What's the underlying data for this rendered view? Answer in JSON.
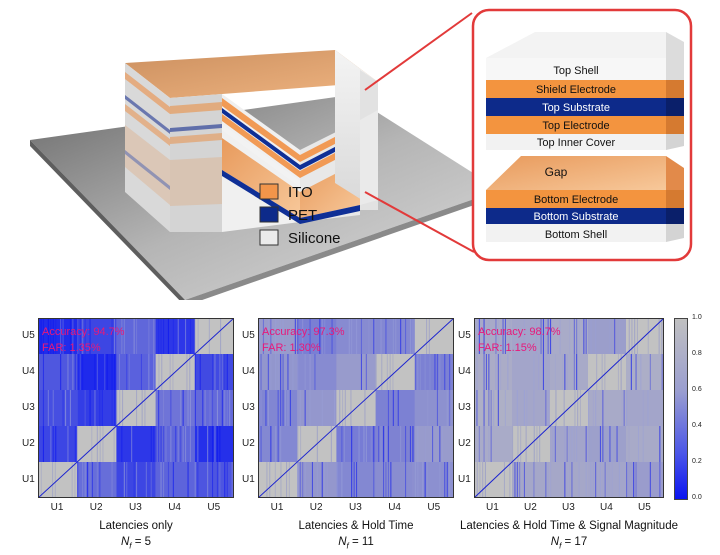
{
  "legend": {
    "items": [
      {
        "label": "ITO",
        "color": "#f2954a"
      },
      {
        "label": "PET",
        "color": "#0d2a8a"
      },
      {
        "label": "Silicone",
        "color": "#ebebeb"
      }
    ]
  },
  "layers": {
    "top_shell": "Top Shell",
    "shield_electrode": "Shield Electrode",
    "top_substrate": "Top Substrate",
    "top_electrode": "Top Electrode",
    "top_inner_cover": "Top Inner Cover",
    "gap": "Gap",
    "bottom_electrode": "Bottom Electrode",
    "bottom_substrate": "Bottom Substrate",
    "bottom_shell": "Bottom Shell"
  },
  "panels": [
    {
      "accuracy": "Accuracy: 94.7%",
      "far": "FAR: 1.35%",
      "caption": "Latencies only",
      "nf_label": "N",
      "nf_sub": "f",
      "nf_value": " = 5"
    },
    {
      "accuracy": "Accuracy: 97.3%",
      "far": "FAR: 1.30%",
      "caption": "Latencies & Hold Time",
      "nf_label": "N",
      "nf_sub": "f",
      "nf_value": " = 11"
    },
    {
      "accuracy": "Accuracy: 98.7%",
      "far": "FAR: 1.15%",
      "caption": "Latencies & Hold Time & Signal Magnitude",
      "nf_label": "N",
      "nf_sub": "f",
      "nf_value": " = 17"
    }
  ],
  "users": {
    "x": [
      "U1",
      "U2",
      "U3",
      "U4",
      "U5"
    ],
    "y": [
      "U5",
      "U4",
      "U3",
      "U2",
      "U1"
    ]
  },
  "colorbar": {
    "ticks": [
      "1.0",
      "0.8",
      "0.6",
      "0.4",
      "0.2",
      "0.0"
    ],
    "colors": {
      "high": "#c0c0c0",
      "low": "#0a14f0"
    }
  }
}
